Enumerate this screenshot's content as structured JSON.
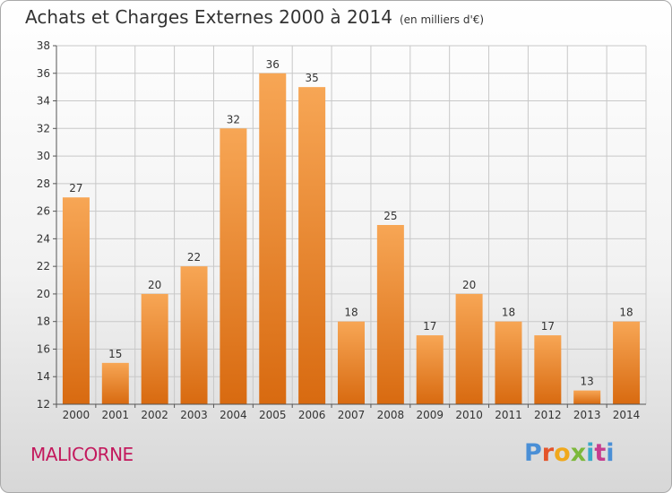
{
  "title": "Achats et Charges Externes 2000 à 2014",
  "unit": "(en milliers d'€)",
  "commune": "MALICORNE",
  "logo": {
    "text": "Proxiti",
    "letters": [
      "P",
      "r",
      "o",
      "x",
      "i",
      "t",
      "i"
    ]
  },
  "colors": {
    "bar_light": "#f7a655",
    "bar_dark": "#d86a10",
    "title": "#333333",
    "commune": "#c3195d",
    "grid": "#c8c8c8"
  },
  "chart_data": {
    "type": "bar",
    "categories": [
      "2000",
      "2001",
      "2002",
      "2003",
      "2004",
      "2005",
      "2006",
      "2007",
      "2008",
      "2009",
      "2010",
      "2011",
      "2012",
      "2013",
      "2014"
    ],
    "values": [
      27,
      15,
      20,
      22,
      32,
      36,
      35,
      18,
      25,
      17,
      20,
      18,
      17,
      13,
      18
    ],
    "title": "Achats et Charges Externes 2000 à 2014",
    "xlabel": "",
    "ylabel": "",
    "ylim": [
      12,
      38
    ],
    "yticks": [
      12,
      14,
      16,
      18,
      20,
      22,
      24,
      26,
      28,
      30,
      32,
      34,
      36,
      38
    ],
    "grid": true,
    "data_labels": true
  }
}
